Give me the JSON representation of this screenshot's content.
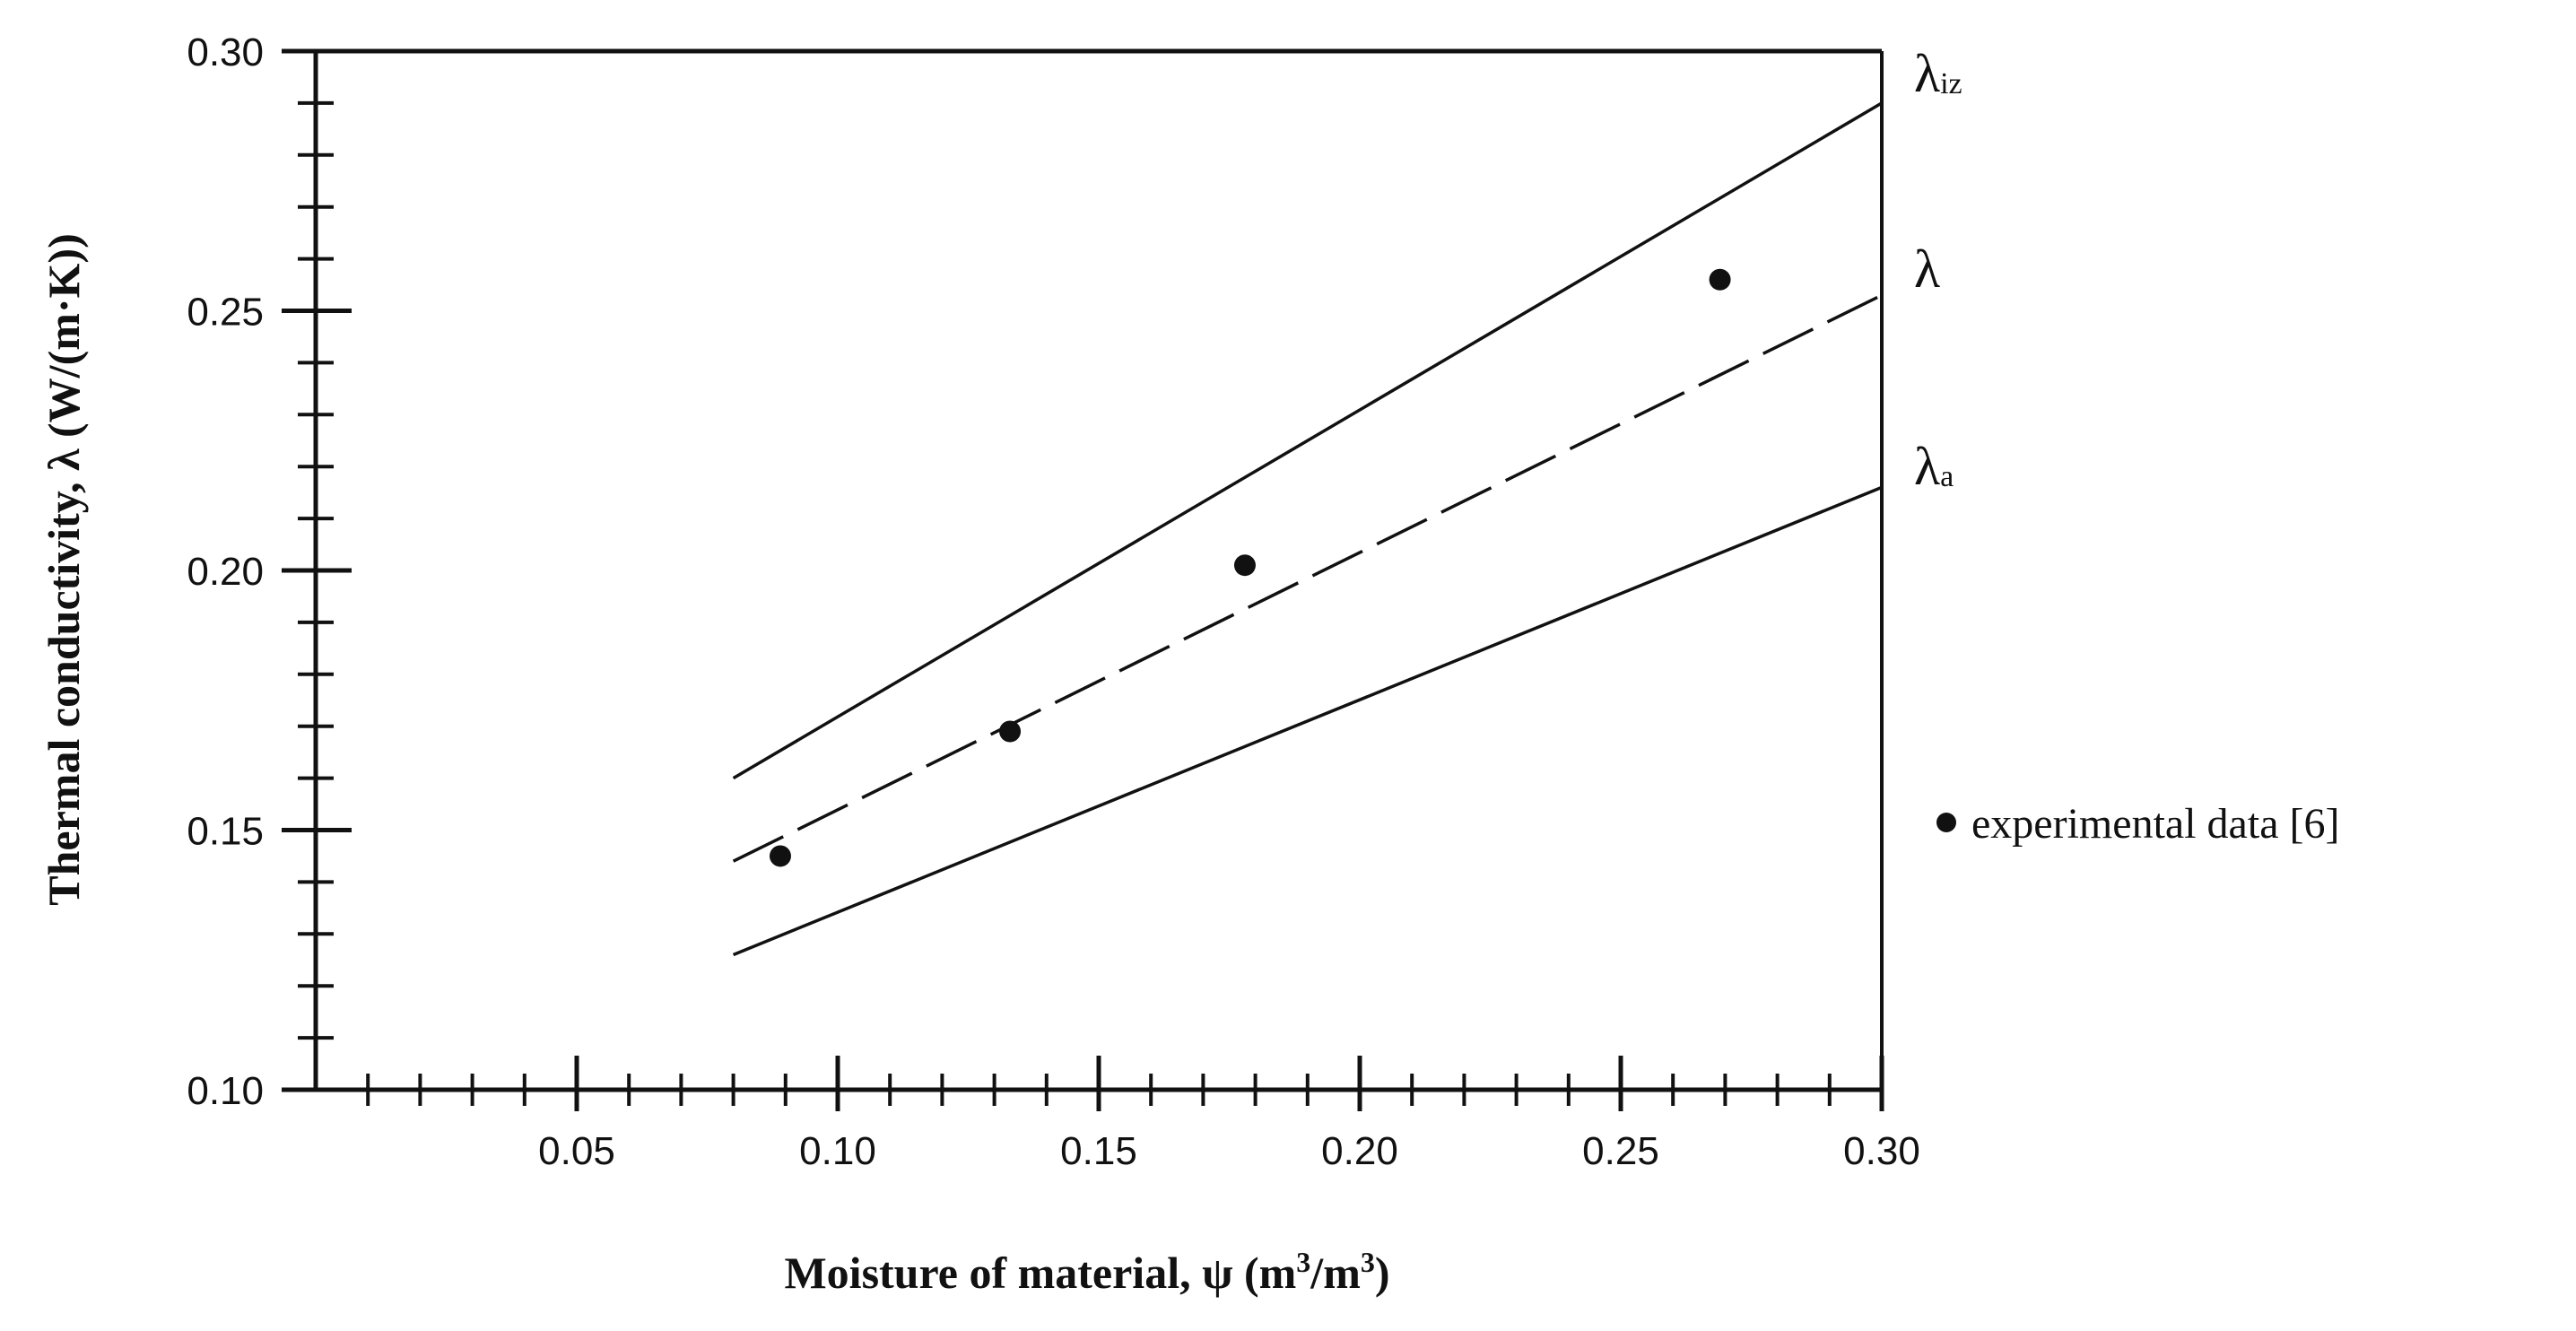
{
  "chart_data": {
    "type": "line",
    "xlabel_main": "Moisture of material, ψ (m",
    "xlabel_sup1": "3",
    "xlabel_mid": "/m",
    "xlabel_sup2": "3",
    "xlabel_end": ")",
    "ylabel": "Thermal conductivity, λ (W/(m·K))",
    "xlim": [
      0.0,
      0.3
    ],
    "ylim": [
      0.1,
      0.3
    ],
    "x_ticks": [
      "0.05",
      "0.10",
      "0.15",
      "0.20",
      "0.25",
      "0.30"
    ],
    "y_ticks": [
      "0.10",
      "0.15",
      "0.20",
      "0.25",
      "0.30"
    ],
    "series": [
      {
        "name": "λ",
        "name_sub": "iz",
        "style": "solid",
        "x": [
          0.08,
          0.3
        ],
        "y": [
          0.16,
          0.29
        ]
      },
      {
        "name": "λ",
        "name_sub": "",
        "style": "dashed",
        "x": [
          0.08,
          0.3
        ],
        "y": [
          0.144,
          0.253
        ]
      },
      {
        "name": "λ",
        "name_sub": "a",
        "style": "solid",
        "x": [
          0.08,
          0.3
        ],
        "y": [
          0.126,
          0.216
        ]
      },
      {
        "name": "experimental data [6]",
        "style": "points",
        "x": [
          0.089,
          0.133,
          0.178,
          0.269
        ],
        "y": [
          0.145,
          0.169,
          0.201,
          0.256
        ]
      }
    ],
    "legend_position": "right",
    "grid": false,
    "color": "#111111"
  }
}
